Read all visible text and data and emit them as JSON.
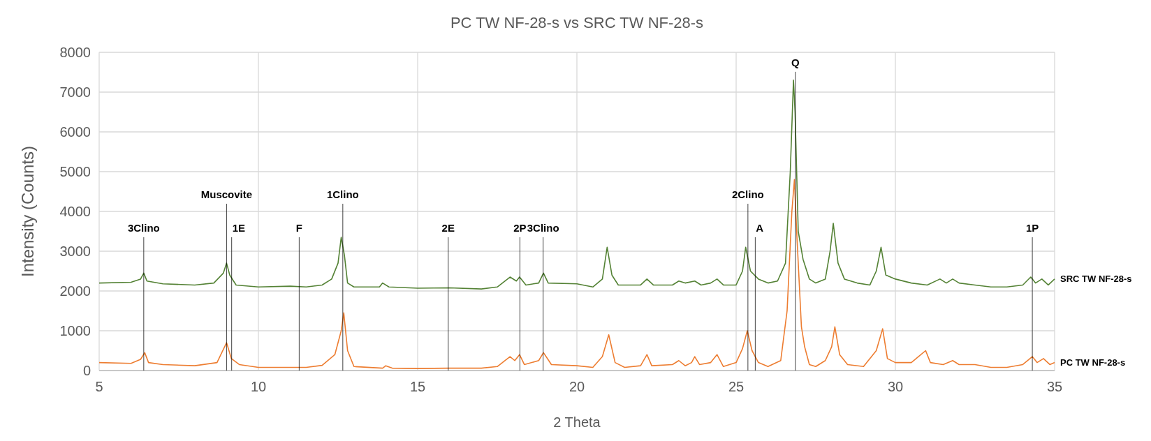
{
  "chart_data": {
    "type": "line",
    "title": "PC TW NF-28-s vs SRC TW NF-28-s",
    "xlabel": "2 Theta",
    "ylabel": "Intensity (Counts)",
    "xlim": [
      5,
      35
    ],
    "xticks": [
      5,
      10,
      15,
      20,
      25,
      30,
      35
    ],
    "ylim": [
      0,
      8000
    ],
    "yticks": [
      0,
      1000,
      2000,
      3000,
      4000,
      5000,
      6000,
      7000,
      8000
    ],
    "grid": true,
    "legend": false,
    "marker": "none",
    "line_style": "solid",
    "series": [
      {
        "name": "SRC TW NF-28-s",
        "color": "#548235",
        "x": [
          5,
          6,
          6.3,
          6.4,
          6.5,
          7,
          8,
          8.6,
          8.9,
          9,
          9.1,
          9.3,
          10,
          11,
          11.5,
          12,
          12.3,
          12.5,
          12.6,
          12.7,
          12.8,
          13,
          13.8,
          13.9,
          14.1,
          15,
          16,
          17,
          17.5,
          17.9,
          18.1,
          18.2,
          18.4,
          18.8,
          18.95,
          19.1,
          20,
          20.5,
          20.8,
          20.95,
          21.1,
          21.3,
          22,
          22.2,
          22.4,
          23,
          23.2,
          23.4,
          23.7,
          23.9,
          24.2,
          24.4,
          24.6,
          25,
          25.2,
          25.3,
          25.45,
          25.7,
          26,
          26.3,
          26.55,
          26.7,
          26.8,
          26.85,
          26.95,
          27.1,
          27.3,
          27.5,
          27.8,
          27.95,
          28.05,
          28.2,
          28.4,
          28.8,
          29.2,
          29.4,
          29.55,
          29.7,
          30,
          30.5,
          31,
          31.4,
          31.6,
          31.8,
          32,
          32.5,
          33,
          33.5,
          34,
          34.25,
          34.4,
          34.6,
          34.8,
          35
        ],
        "values": [
          2200,
          2220,
          2300,
          2450,
          2250,
          2180,
          2150,
          2200,
          2450,
          2700,
          2400,
          2150,
          2100,
          2120,
          2100,
          2150,
          2300,
          2700,
          3350,
          2900,
          2200,
          2100,
          2100,
          2200,
          2100,
          2070,
          2080,
          2050,
          2100,
          2350,
          2250,
          2350,
          2150,
          2200,
          2450,
          2200,
          2180,
          2100,
          2300,
          3100,
          2400,
          2150,
          2150,
          2300,
          2150,
          2150,
          2250,
          2200,
          2250,
          2150,
          2200,
          2300,
          2150,
          2150,
          2500,
          3100,
          2500,
          2300,
          2200,
          2250,
          2700,
          5000,
          7300,
          6500,
          3500,
          2800,
          2300,
          2200,
          2300,
          3000,
          3700,
          2700,
          2300,
          2200,
          2150,
          2500,
          3100,
          2400,
          2300,
          2200,
          2150,
          2300,
          2200,
          2300,
          2200,
          2150,
          2100,
          2100,
          2150,
          2350,
          2200,
          2300,
          2150,
          2300
        ]
      },
      {
        "name": "PC TW NF-28-s",
        "color": "#ed7d31",
        "x": [
          5,
          6,
          6.3,
          6.43,
          6.55,
          7,
          8,
          8.7,
          9,
          9.15,
          9.4,
          10,
          11,
          11.5,
          12,
          12.4,
          12.6,
          12.68,
          12.8,
          13,
          13.9,
          14,
          14.2,
          15,
          16,
          17,
          17.5,
          17.9,
          18.05,
          18.2,
          18.35,
          18.8,
          18.95,
          19.2,
          20,
          20.5,
          20.8,
          21,
          21.2,
          21.5,
          22,
          22.2,
          22.35,
          23,
          23.2,
          23.4,
          23.6,
          23.7,
          23.85,
          24.2,
          24.4,
          24.6,
          25,
          25.2,
          25.35,
          25.5,
          25.7,
          26,
          26.4,
          26.6,
          26.75,
          26.83,
          26.9,
          27.05,
          27.15,
          27.3,
          27.5,
          27.8,
          28,
          28.1,
          28.25,
          28.5,
          29,
          29.4,
          29.6,
          29.75,
          30,
          30.5,
          30.95,
          31.1,
          31.5,
          31.8,
          32,
          32.5,
          33,
          33.5,
          34,
          34.3,
          34.45,
          34.65,
          34.85,
          35
        ],
        "values": [
          200,
          180,
          280,
          450,
          200,
          150,
          120,
          200,
          700,
          300,
          150,
          80,
          80,
          80,
          130,
          400,
          1000,
          1450,
          500,
          100,
          60,
          120,
          60,
          50,
          60,
          60,
          100,
          350,
          250,
          400,
          150,
          250,
          450,
          150,
          120,
          80,
          350,
          900,
          200,
          80,
          120,
          400,
          120,
          150,
          250,
          120,
          200,
          350,
          150,
          200,
          400,
          100,
          200,
          550,
          1000,
          500,
          200,
          100,
          250,
          1500,
          4000,
          4800,
          3500,
          1100,
          600,
          150,
          100,
          250,
          600,
          1100,
          400,
          150,
          100,
          500,
          1050,
          300,
          200,
          200,
          500,
          200,
          150,
          250,
          150,
          150,
          80,
          80,
          150,
          350,
          200,
          300,
          150,
          200
        ]
      }
    ],
    "ref_lines": [
      {
        "axis": "x",
        "value": 6.4,
        "label": "3Clino"
      },
      {
        "axis": "x",
        "value": 9,
        "label": "Muscovite"
      },
      {
        "axis": "x",
        "value": 9.16,
        "label": "1E"
      },
      {
        "axis": "x",
        "value": 11.28,
        "label": "F"
      },
      {
        "axis": "x",
        "value": 12.65,
        "label": "1Clino"
      },
      {
        "axis": "x",
        "value": 15.96,
        "label": "2E"
      },
      {
        "axis": "x",
        "value": 18.21,
        "label": "2P"
      },
      {
        "axis": "x",
        "value": 18.94,
        "label": "3Clino"
      },
      {
        "axis": "x",
        "value": 25.37,
        "label": "2Clino"
      },
      {
        "axis": "x",
        "value": 25.6,
        "label": "A"
      },
      {
        "axis": "x",
        "value": 26.86,
        "label": "Q"
      },
      {
        "axis": "x",
        "value": 34.3,
        "label": "1P"
      }
    ]
  }
}
